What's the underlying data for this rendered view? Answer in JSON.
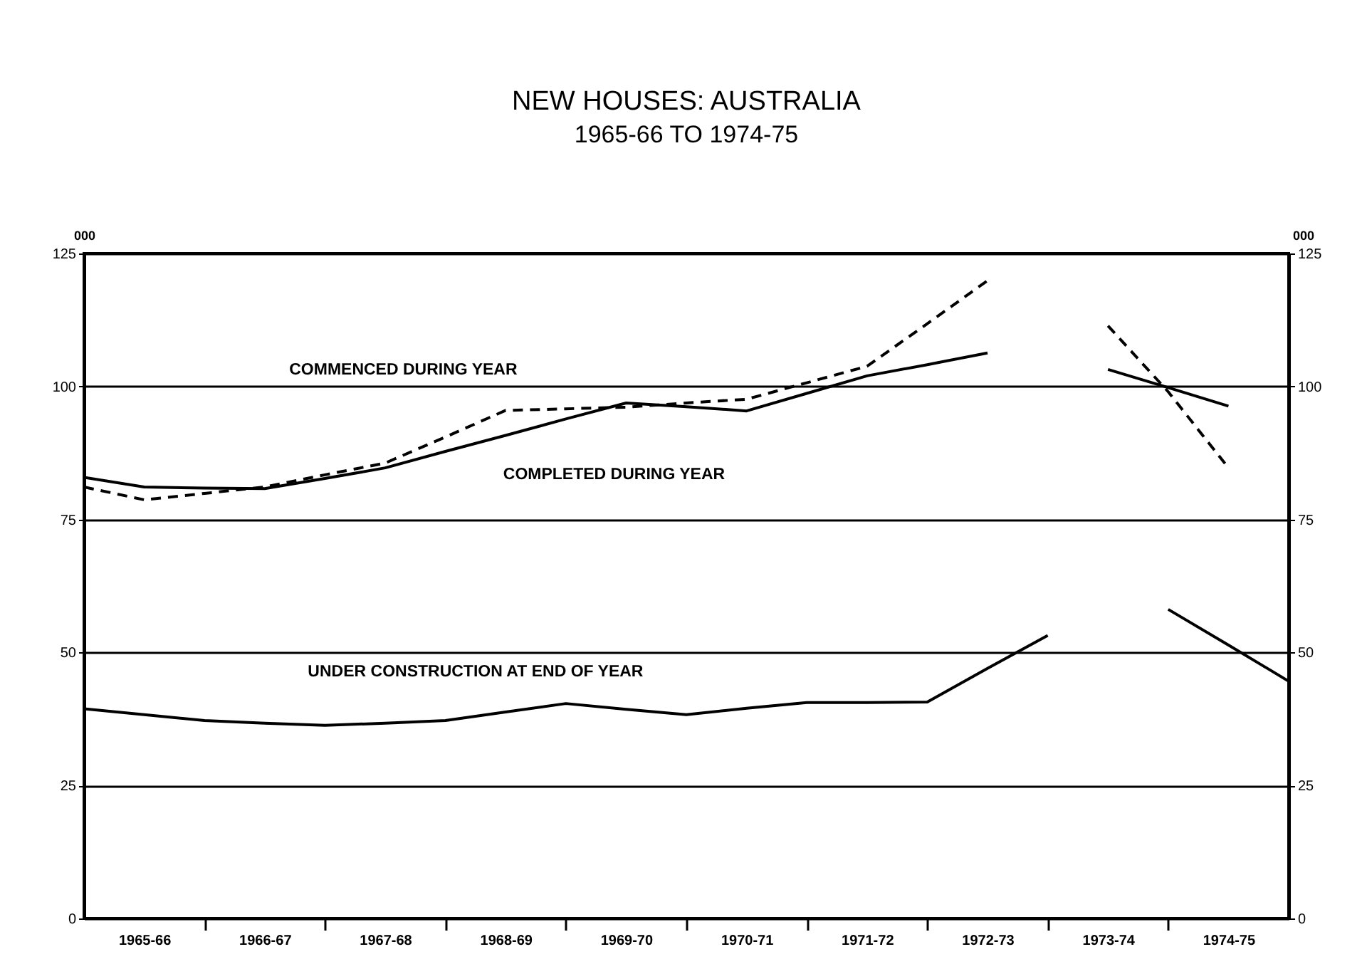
{
  "chart_data": {
    "type": "line",
    "title": "NEW HOUSES: AUSTRALIA",
    "subtitle": "1965-66 TO 1974-75",
    "ylabel": "000",
    "y2label": "000",
    "categories": [
      null,
      "1965-66",
      null,
      "1966-67",
      null,
      "1967-68",
      null,
      "1968-69",
      null,
      "1969-70",
      null,
      "1970-71",
      null,
      "1971-72",
      null,
      "1972-73",
      null,
      "1973-74",
      null,
      "1974-75",
      null
    ],
    "ylim": [
      0,
      125
    ],
    "yticks": [
      0,
      25,
      50,
      75,
      100,
      125
    ],
    "y2lim": [
      0,
      125
    ],
    "y2ticks": [
      0,
      25,
      50,
      75,
      100,
      125
    ],
    "grid": "y",
    "marker": "none",
    "series": [
      {
        "name": "COMMENCED DURING YEAR",
        "color": "#000000",
        "line_style": "dashed",
        "values": [
          81.1,
          78.7,
          79.9,
          81.1,
          83.4,
          85.6,
          90.5,
          95.5,
          95.8,
          96.1,
          96.9,
          97.6,
          100.7,
          103.8,
          111.8,
          119.9,
          null,
          111.4,
          99,
          84.7,
          null
        ]
      },
      {
        "name": "COMPLETED DURING YEAR",
        "color": "#000000",
        "line_style": "solid",
        "values": [
          82.9,
          81.1,
          80.9,
          80.8,
          82.7,
          84.7,
          87.8,
          90.8,
          93.9,
          96.9,
          96.2,
          95.4,
          98.7,
          102,
          104.1,
          106.3,
          null,
          103.2,
          99.8,
          96.3,
          null
        ]
      },
      {
        "name": "UNDER CONSTRUCTION AT END OF YEAR",
        "color": "#000000",
        "line_style": "solid",
        "values": [
          39.4,
          38.3,
          37.2,
          36.7,
          36.3,
          36.7,
          37.2,
          38.8,
          40.4,
          39.3,
          38.3,
          39.5,
          40.6,
          40.6,
          40.7,
          47,
          53.2,
          null,
          58.1,
          51.4,
          44.6
        ]
      }
    ]
  }
}
